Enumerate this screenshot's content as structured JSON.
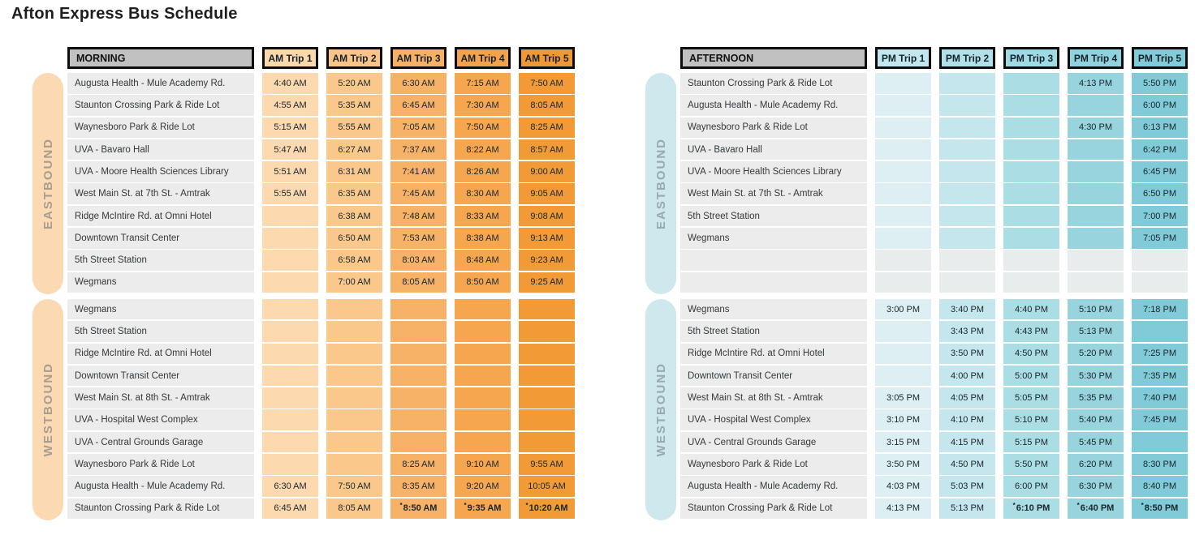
{
  "title": "Afton Express Bus Schedule",
  "palette": {
    "period_header_fill": "#c1c1c1",
    "header_border": "#0d0d0d",
    "label_cell_fill": "#ececec",
    "ghost_cell_fill": "#e8eced",
    "cell_text": "#17262e",
    "title_text": "#1e1e1e"
  },
  "tables": [
    {
      "id": "morning",
      "period_label": "MORNING",
      "trip_headers": [
        "AM Trip 1",
        "AM Trip 2",
        "AM Trip 3",
        "AM Trip 4",
        "AM Trip 5"
      ],
      "trip_header_fills": [
        "#fcd8ab",
        "#fac489",
        "#f8b064",
        "#f5a34a",
        "#f09834"
      ],
      "column_fills": [
        "#fcd9ae",
        "#fac88b",
        "#f8b268",
        "#f6a64e",
        "#f29b36"
      ],
      "pill_fill": "#fbd9b2",
      "pill_text_color": "#a79e90",
      "sections": [
        {
          "direction": "EASTBOUND",
          "rows": [
            {
              "stop": "Augusta Health - Mule Academy Rd.",
              "times": [
                "4:40 AM",
                "5:20 AM",
                "6:30 AM",
                "7:15 AM",
                "7:50 AM"
              ]
            },
            {
              "stop": "Staunton Crossing Park & Ride Lot",
              "times": [
                "4:55 AM",
                "5:35 AM",
                "6:45 AM",
                "7:30 AM",
                "8:05 AM"
              ]
            },
            {
              "stop": "Waynesboro Park & Ride Lot",
              "times": [
                "5:15 AM",
                "5:55 AM",
                "7:05 AM",
                "7:50 AM",
                "8:25 AM"
              ]
            },
            {
              "stop": "UVA - Bavaro Hall",
              "times": [
                "5:47 AM",
                "6:27 AM",
                "7:37 AM",
                "8:22 AM",
                "8:57 AM"
              ]
            },
            {
              "stop": "UVA - Moore Health Sciences Library",
              "times": [
                "5:51 AM",
                "6:31 AM",
                "7:41 AM",
                "8:26 AM",
                "9:00 AM"
              ]
            },
            {
              "stop": "West Main St. at 7th St. - Amtrak",
              "times": [
                "5:55 AM",
                "6:35 AM",
                "7:45 AM",
                "8:30 AM",
                "9:05 AM"
              ]
            },
            {
              "stop": "Ridge McIntire Rd. at Omni Hotel",
              "times": [
                "",
                "6:38 AM",
                "7:48 AM",
                "8:33 AM",
                "9:08 AM"
              ]
            },
            {
              "stop": "Downtown Transit Center",
              "times": [
                "",
                "6:50 AM",
                "7:53 AM",
                "8:38 AM",
                "9:13 AM"
              ]
            },
            {
              "stop": "5th Street Station",
              "times": [
                "",
                "6:58 AM",
                "8:03 AM",
                "8:48 AM",
                "9:23 AM"
              ]
            },
            {
              "stop": "Wegmans",
              "times": [
                "",
                "7:00 AM",
                "8:05 AM",
                "8:50 AM",
                "9:25 AM"
              ]
            }
          ]
        },
        {
          "direction": "WESTBOUND",
          "rows": [
            {
              "stop": "Wegmans",
              "times": [
                "",
                "",
                "",
                "",
                ""
              ]
            },
            {
              "stop": "5th Street Station",
              "times": [
                "",
                "",
                "",
                "",
                ""
              ]
            },
            {
              "stop": "Ridge McIntire Rd. at Omni Hotel",
              "times": [
                "",
                "",
                "",
                "",
                ""
              ]
            },
            {
              "stop": "Downtown Transit Center",
              "times": [
                "",
                "",
                "",
                "",
                ""
              ]
            },
            {
              "stop": "West Main St. at 8th St. - Amtrak",
              "times": [
                "",
                "",
                "",
                "",
                ""
              ]
            },
            {
              "stop": "UVA - Hospital West Complex",
              "times": [
                "",
                "",
                "",
                "",
                ""
              ]
            },
            {
              "stop": "UVA - Central Grounds Garage",
              "times": [
                "",
                "",
                "",
                "",
                ""
              ]
            },
            {
              "stop": "Waynesboro Park & Ride Lot",
              "times": [
                "",
                "",
                "8:25 AM",
                "9:10 AM",
                "9:55 AM"
              ]
            },
            {
              "stop": "Augusta Health - Mule Academy Rd.",
              "times": [
                "6:30 AM",
                "7:50 AM",
                "8:35 AM",
                "9:20 AM",
                "10:05 AM"
              ]
            },
            {
              "stop": "Staunton Crossing Park & Ride Lot",
              "times": [
                "6:45 AM",
                "8:05 AM",
                "*8:50 AM",
                "*9:35 AM",
                "*10:20 AM"
              ]
            }
          ]
        }
      ]
    },
    {
      "id": "afternoon",
      "period_label": "AFTERNOON",
      "trip_headers": [
        "PM Trip 1",
        "PM Trip 2",
        "PM Trip 3",
        "PM Trip 4",
        "PM Trip 5"
      ],
      "trip_header_fills": [
        "#c2e7ee",
        "#b1e0e9",
        "#a0dae4",
        "#90d3de",
        "#81ccd8"
      ],
      "column_fills": [
        "#ddeff2",
        "#c5e6ec",
        "#abdde5",
        "#97d4de",
        "#80cbd7"
      ],
      "pill_fill": "#cfe8ed",
      "pill_text_color": "#96aab0",
      "sections": [
        {
          "direction": "EASTBOUND",
          "rows": [
            {
              "stop": "Staunton Crossing Park & Ride Lot",
              "times": [
                "",
                "",
                "",
                "4:13 PM",
                "5:50 PM"
              ]
            },
            {
              "stop": "Augusta Health - Mule Academy Rd.",
              "times": [
                "",
                "",
                "",
                "",
                "6:00 PM"
              ]
            },
            {
              "stop": "Waynesboro Park & Ride Lot",
              "times": [
                "",
                "",
                "",
                "4:30 PM",
                "6:13 PM"
              ]
            },
            {
              "stop": "UVA - Bavaro Hall",
              "times": [
                "",
                "",
                "",
                "",
                "6:42 PM"
              ]
            },
            {
              "stop": "UVA - Moore Health Sciences Library",
              "times": [
                "",
                "",
                "",
                "",
                "6:45 PM"
              ]
            },
            {
              "stop": "West Main St. at 7th St. - Amtrak",
              "times": [
                "",
                "",
                "",
                "",
                "6:50 PM"
              ]
            },
            {
              "stop": "5th Street Station",
              "times": [
                "",
                "",
                "",
                "",
                "7:00 PM"
              ]
            },
            {
              "stop": "Wegmans",
              "times": [
                "",
                "",
                "",
                "",
                "7:05 PM"
              ]
            },
            {
              "stop": "",
              "times": [
                null,
                null,
                null,
                null,
                null
              ]
            },
            {
              "stop": "",
              "times": [
                null,
                null,
                null,
                null,
                null
              ]
            }
          ]
        },
        {
          "direction": "WESTBOUND",
          "rows": [
            {
              "stop": "Wegmans",
              "times": [
                "3:00 PM",
                "3:40 PM",
                "4:40 PM",
                "5:10 PM",
                "7:18 PM"
              ]
            },
            {
              "stop": "5th Street Station",
              "times": [
                "",
                "3:43 PM",
                "4:43 PM",
                "5:13 PM",
                ""
              ]
            },
            {
              "stop": "Ridge McIntire Rd. at Omni Hotel",
              "times": [
                "",
                "3:50 PM",
                "4:50 PM",
                "5:20 PM",
                "7:25 PM"
              ]
            },
            {
              "stop": "Downtown Transit Center",
              "times": [
                "",
                "4:00 PM",
                "5:00 PM",
                "5:30 PM",
                "7:35 PM"
              ]
            },
            {
              "stop": "West Main St. at 8th St. - Amtrak",
              "times": [
                "3:05 PM",
                "4:05 PM",
                "5:05 PM",
                "5:35 PM",
                "7:40 PM"
              ]
            },
            {
              "stop": "UVA - Hospital West Complex",
              "times": [
                "3:10 PM",
                "4:10 PM",
                "5:10 PM",
                "5:40 PM",
                "7:45 PM"
              ]
            },
            {
              "stop": "UVA - Central Grounds Garage",
              "times": [
                "3:15 PM",
                "4:15 PM",
                "5:15 PM",
                "5:45 PM",
                ""
              ]
            },
            {
              "stop": "Waynesboro Park & Ride Lot",
              "times": [
                "3:50 PM",
                "4:50 PM",
                "5:50 PM",
                "6:20 PM",
                "8:30 PM"
              ]
            },
            {
              "stop": "Augusta Health - Mule Academy Rd.",
              "times": [
                "4:03 PM",
                "5:03 PM",
                "6:00 PM",
                "6:30 PM",
                "8:40 PM"
              ]
            },
            {
              "stop": "Staunton Crossing Park & Ride Lot",
              "times": [
                "4:13 PM",
                "5:13 PM",
                "*6:10 PM",
                "*6:40 PM",
                "*8:50 PM"
              ]
            }
          ]
        }
      ]
    }
  ]
}
